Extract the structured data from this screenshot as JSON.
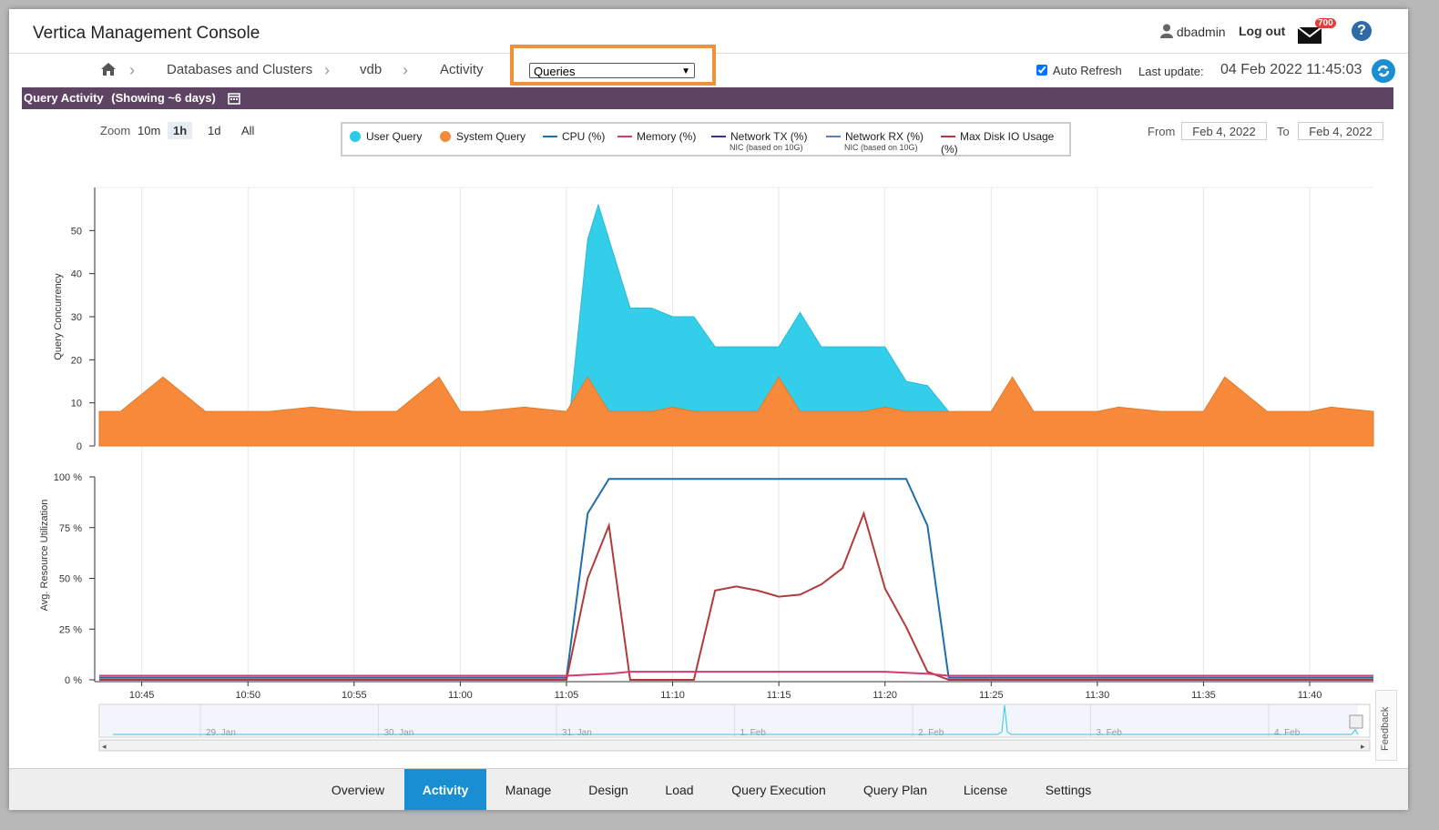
{
  "app": {
    "title": "Vertica Management Console",
    "user": "dbadmin",
    "logout": "Log out",
    "notif_count": "700"
  },
  "breadcrumb": {
    "items": [
      "Databases and Clusters",
      "vdb",
      "Activity"
    ]
  },
  "selector": {
    "value": "Queries"
  },
  "refresh": {
    "auto_label": "Auto Refresh",
    "auto_checked": true,
    "last_update_label": "Last update:",
    "last_update_value": "04 Feb 2022 11:45:03"
  },
  "banner": {
    "title": "Query Activity",
    "showing": "(Showing ~6 days)"
  },
  "zoom": {
    "label": "Zoom",
    "options": [
      "10m",
      "1h",
      "1d",
      "All"
    ],
    "selected": "1h"
  },
  "legend": {
    "items": [
      {
        "name": "User Query",
        "color": "#29cce8",
        "type": "dot"
      },
      {
        "name": "System Query",
        "color": "#f68a3a",
        "type": "dot"
      },
      {
        "name": "CPU (%)",
        "color": "#1f6eaa",
        "type": "line"
      },
      {
        "name": "Memory (%)",
        "color": "#d63a72",
        "type": "line"
      },
      {
        "name": "Network TX (%)",
        "sub": "NIC (based on 10G)",
        "color": "#3a2fa0",
        "type": "line"
      },
      {
        "name": "Network RX (%)",
        "sub": "NIC (based on 10G)",
        "color": "#5a7fb5",
        "type": "line"
      },
      {
        "name": "Max Disk IO Usage (%)",
        "color": "#b23a3a",
        "type": "line"
      }
    ]
  },
  "date_range": {
    "from_label": "From",
    "from": "Feb 4, 2022",
    "to_label": "To",
    "to": "Feb 4, 2022"
  },
  "chart_data": [
    {
      "type": "area",
      "title": "",
      "ylabel": "Query Concurrency",
      "ylim": [
        0,
        60
      ],
      "yticks": [
        "0",
        "10",
        "20",
        "30",
        "40",
        "50"
      ],
      "x": [
        "10:43",
        "10:44",
        "10:46",
        "10:48",
        "10:50",
        "10:51",
        "10:53",
        "10:55",
        "10:57",
        "10:59",
        "11:00",
        "11:01",
        "11:03",
        "11:05",
        "11:06",
        "11:07",
        "11:08",
        "11:09",
        "11:10",
        "11:11",
        "11:12",
        "11:13",
        "11:14",
        "11:15",
        "11:16",
        "11:17",
        "11:18",
        "11:19",
        "11:20",
        "11:21",
        "11:22",
        "11:23",
        "11:25",
        "11:26",
        "11:27",
        "11:30",
        "11:31",
        "11:33",
        "11:35",
        "11:36",
        "11:38",
        "11:40",
        "11:41",
        "11:43"
      ],
      "series": [
        {
          "name": "System Query",
          "values": [
            8,
            8,
            16,
            8,
            8,
            8,
            9,
            8,
            8,
            16,
            8,
            8,
            9,
            8,
            16,
            8,
            8,
            8,
            9,
            8,
            8,
            8,
            8,
            16,
            8,
            8,
            8,
            8,
            9,
            8,
            8,
            8,
            8,
            16,
            8,
            8,
            9,
            8,
            8,
            16,
            8,
            8,
            9,
            8
          ],
          "color": "#f68a3a"
        },
        {
          "name": "User Query",
          "x": [
            "11:05",
            "11:06",
            "11:06.5",
            "11:07",
            "11:08",
            "11:09",
            "11:10",
            "11:11",
            "11:12",
            "11:13",
            "11:14",
            "11:15",
            "11:16",
            "11:17",
            "11:18",
            "11:19",
            "11:20",
            "11:21",
            "11:22",
            "11:23"
          ],
          "values": [
            0,
            48,
            56,
            48,
            32,
            32,
            30,
            30,
            23,
            23,
            23,
            23,
            31,
            23,
            23,
            23,
            23,
            15,
            14,
            8
          ],
          "color": "#29cce8"
        }
      ]
    },
    {
      "type": "line",
      "title": "",
      "ylabel": "Avg. Resource Utilization",
      "ylim": [
        0,
        100
      ],
      "yticks": [
        "0 %",
        "25 %",
        "50 %",
        "75 %",
        "100 %"
      ],
      "xticks": [
        "10:45",
        "10:50",
        "10:55",
        "11:00",
        "11:05",
        "11:10",
        "11:15",
        "11:20",
        "11:25",
        "11:30",
        "11:35",
        "11:40"
      ],
      "series": [
        {
          "name": "CPU (%)",
          "x": [
            "10:43",
            "11:05",
            "11:06",
            "11:07",
            "11:12",
            "11:18",
            "11:21",
            "11:22",
            "11:23",
            "11:43"
          ],
          "values": [
            1,
            1,
            82,
            99,
            99,
            99,
            99,
            76,
            1,
            1
          ],
          "color": "#1f6eaa"
        },
        {
          "name": "Max Disk IO Usage (%)",
          "x": [
            "10:43",
            "11:05",
            "11:06",
            "11:07",
            "11:08",
            "11:10",
            "11:11",
            "11:12",
            "11:13",
            "11:14",
            "11:15",
            "11:16",
            "11:17",
            "11:18",
            "11:19",
            "11:20",
            "11:21",
            "11:22",
            "11:23",
            "11:43"
          ],
          "values": [
            0,
            0,
            50,
            76,
            0,
            0,
            0,
            44,
            46,
            44,
            41,
            42,
            47,
            55,
            82,
            45,
            26,
            4,
            0,
            0
          ],
          "color": "#b23a3a"
        },
        {
          "name": "Memory (%)",
          "x": [
            "10:43",
            "11:05",
            "11:07",
            "11:08",
            "11:10",
            "11:20",
            "11:22",
            "11:23",
            "11:43"
          ],
          "values": [
            2,
            2,
            3,
            4,
            4,
            4,
            3,
            2,
            2
          ],
          "color": "#d63a72"
        }
      ]
    }
  ],
  "navigator": {
    "labels": [
      "29. Jan",
      "30. Jan",
      "31. Jan",
      "1. Feb",
      "2. Feb",
      "3. Feb",
      "4. Feb"
    ]
  },
  "feedback": "Feedback",
  "tabs": {
    "items": [
      "Overview",
      "Activity",
      "Manage",
      "Design",
      "Load",
      "Query Execution",
      "Query Plan",
      "License",
      "Settings"
    ],
    "active": "Activity"
  }
}
